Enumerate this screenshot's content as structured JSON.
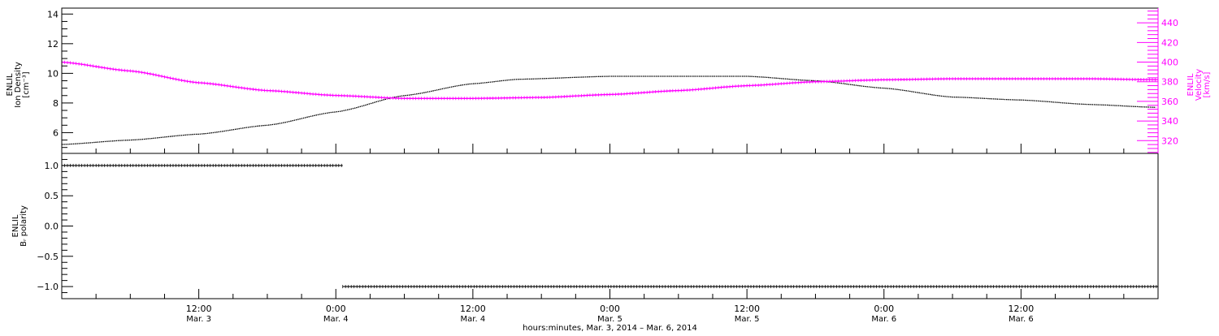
{
  "chart_data": [
    {
      "type": "line",
      "panel": "top",
      "left_axis": {
        "label_lines": [
          "ENLIL",
          "Ion Density",
          "[cm⁻³]"
        ],
        "range": [
          4.6,
          14.4
        ],
        "ticks": [
          6,
          8,
          10,
          12,
          14
        ],
        "tick_labels": [
          "6",
          "8",
          "10",
          "12",
          "14"
        ]
      },
      "right_axis": {
        "label_lines": [
          "ENLIL",
          "Velocity",
          "[km/s]"
        ],
        "range": [
          307,
          455
        ],
        "ticks": [
          320,
          340,
          360,
          380,
          400,
          420,
          440
        ],
        "tick_labels": [
          "320",
          "340",
          "360",
          "380",
          "400",
          "420",
          "440"
        ],
        "color": "#ff00ff"
      },
      "series": [
        {
          "color": "#000000",
          "axis": "left",
          "x_hours": [
            0,
            6,
            12,
            18,
            24,
            30,
            36,
            40,
            48,
            54,
            60,
            66,
            72,
            78,
            84,
            90,
            96
          ],
          "values": [
            5.2,
            5.5,
            5.9,
            6.5,
            7.4,
            8.5,
            9.3,
            9.6,
            9.8,
            9.8,
            9.8,
            9.5,
            9.0,
            8.4,
            8.2,
            7.9,
            7.7
          ]
        },
        {
          "color": "#ff00ff",
          "axis": "right",
          "x_hours": [
            0,
            6,
            12,
            18,
            24,
            30,
            36,
            42,
            48,
            54,
            60,
            66,
            72,
            78,
            84,
            90,
            96
          ],
          "values": [
            400,
            391,
            379,
            371,
            366,
            363,
            363,
            364,
            367,
            371,
            376,
            380,
            382,
            383,
            383,
            383,
            382
          ]
        }
      ]
    },
    {
      "type": "scatter",
      "panel": "bottom",
      "left_axis": {
        "label_lines": [
          "ENLIL",
          "Bᵣ polarity"
        ],
        "range": [
          -1.2,
          1.2
        ],
        "ticks": [
          -1.0,
          -0.5,
          0.0,
          0.5,
          1.0
        ],
        "tick_labels": [
          "−1.0",
          "−0.5",
          "0.0",
          "0.5",
          "1.0"
        ]
      },
      "series": [
        {
          "color": "#000000",
          "x_hours": [
            0,
            24.6
          ],
          "values": [
            1,
            1
          ]
        },
        {
          "color": "#000000",
          "x_hours": [
            24.6,
            96
          ],
          "values": [
            -1,
            -1
          ]
        }
      ]
    }
  ],
  "x_axis": {
    "range_hours": [
      0,
      96
    ],
    "start": "Mar. 3, 2014 00:00",
    "major_ticks_hours": [
      12,
      24,
      36,
      48,
      60,
      72,
      84
    ],
    "tick_time_labels": [
      "12:00",
      "0:00",
      "12:00",
      "0:00",
      "12:00",
      "0:00",
      "12:00"
    ],
    "tick_date_labels": [
      "Mar. 3",
      "Mar. 4",
      "Mar. 4",
      "Mar. 5",
      "Mar. 5",
      "Mar. 6",
      "Mar. 6"
    ],
    "title": "hours:minutes, Mar.  3, 2014 – Mar.  6, 2014"
  }
}
